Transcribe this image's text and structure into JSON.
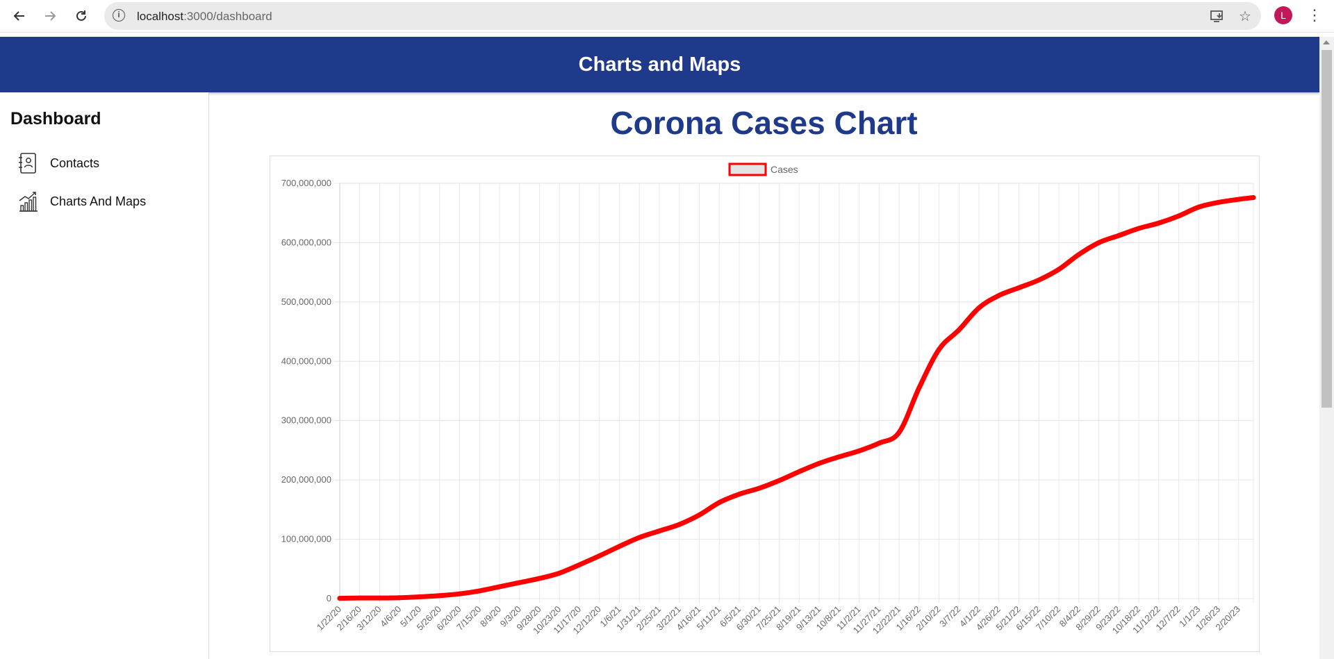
{
  "browser": {
    "url_host": "localhost",
    "url_path": ":3000/dashboard",
    "profile_initial": "L",
    "icons": [
      "back-arrow-icon",
      "forward-arrow-icon",
      "reload-icon",
      "site-info-icon",
      "install-app-icon",
      "bookmark-star-icon",
      "more-menu-icon"
    ]
  },
  "header": {
    "title": "Charts and Maps"
  },
  "sidebar": {
    "title": "Dashboard",
    "items": [
      {
        "label": "Contacts",
        "icon": "contacts-book-icon"
      },
      {
        "label": "Charts And Maps",
        "icon": "bar-chart-trend-icon"
      }
    ]
  },
  "main": {
    "title": "Corona Cases Chart"
  },
  "colors": {
    "header_bg": "#1f3a8a",
    "title_color": "#1f3a8a",
    "series_line": "#ff0000",
    "legend_box_fill": "#e5e5e5"
  },
  "chart_data": {
    "type": "line",
    "legend": {
      "position": "top",
      "entries": [
        "Cases"
      ]
    },
    "grid": true,
    "ylim": [
      0,
      700000000
    ],
    "y_ticks": [
      "0",
      "100,000,000",
      "200,000,000",
      "300,000,000",
      "400,000,000",
      "500,000,000",
      "600,000,000",
      "700,000,000"
    ],
    "x_tick_labels": [
      "1/22/20",
      "2/16/20",
      "3/12/20",
      "4/6/20",
      "5/1/20",
      "5/26/20",
      "6/20/20",
      "7/15/20",
      "8/9/20",
      "9/3/20",
      "9/28/20",
      "10/23/20",
      "11/17/20",
      "12/12/20",
      "1/6/21",
      "1/31/21",
      "2/25/21",
      "3/22/21",
      "4/16/21",
      "5/11/21",
      "6/5/21",
      "6/30/21",
      "7/25/21",
      "8/19/21",
      "9/13/21",
      "10/8/21",
      "11/2/21",
      "11/27/21",
      "12/22/21",
      "1/16/22",
      "2/10/22",
      "3/7/22",
      "4/1/22",
      "4/26/22",
      "5/21/22",
      "6/15/22",
      "7/10/22",
      "8/4/22",
      "8/29/22",
      "9/23/22",
      "10/18/22",
      "11/12/22",
      "12/7/22",
      "1/1/23",
      "1/26/23",
      "2/20/23"
    ],
    "series": [
      {
        "name": "Cases",
        "x": [
          "1/22/20",
          "2/16/20",
          "3/12/20",
          "4/6/20",
          "5/1/20",
          "5/26/20",
          "6/20/20",
          "7/15/20",
          "8/9/20",
          "9/3/20",
          "9/28/20",
          "10/23/20",
          "11/17/20",
          "12/12/20",
          "1/6/21",
          "1/31/21",
          "2/25/21",
          "3/22/21",
          "4/16/21",
          "5/11/21",
          "6/5/21",
          "6/30/21",
          "7/25/21",
          "8/19/21",
          "9/13/21",
          "10/8/21",
          "11/2/21",
          "11/27/21",
          "12/22/21",
          "1/16/22",
          "2/10/22",
          "3/7/22",
          "4/1/22",
          "4/26/22",
          "5/21/22",
          "6/15/22",
          "7/10/22",
          "8/4/22",
          "8/29/22",
          "9/23/22",
          "10/18/22",
          "11/12/22",
          "12/7/22",
          "1/1/23",
          "1/26/23",
          "2/20/23",
          "3/9/23"
        ],
        "values": [
          500000,
          1000000,
          1000000,
          1500000,
          3000000,
          5000000,
          8000000,
          13000000,
          20000000,
          27000000,
          34000000,
          43000000,
          57000000,
          72000000,
          88000000,
          103000000,
          114000000,
          125000000,
          141000000,
          162000000,
          176000000,
          186000000,
          199000000,
          214000000,
          228000000,
          239000000,
          249000000,
          262000000,
          280000000,
          355000000,
          420000000,
          453000000,
          490000000,
          511000000,
          524000000,
          537000000,
          555000000,
          580000000,
          600000000,
          612000000,
          624000000,
          633000000,
          645000000,
          660000000,
          668000000,
          673000000,
          676000000
        ]
      }
    ]
  }
}
